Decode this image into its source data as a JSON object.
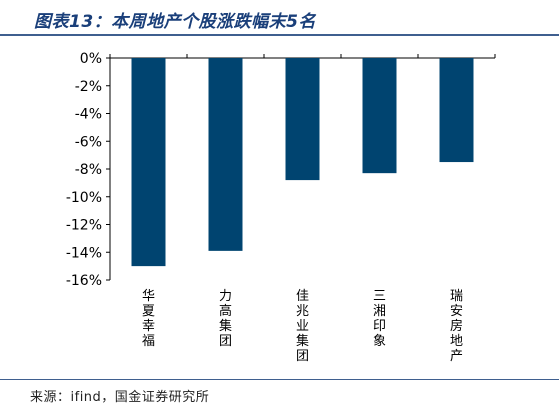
{
  "header": {
    "title": "图表13：本周地产个股涨跌幅末5名"
  },
  "footer": {
    "source": "来源：ifind，国金证券研究所"
  },
  "colors": {
    "bar": "#004470",
    "title": "#1a3f7a",
    "rule": "#3f5f8f",
    "axis": "#000000",
    "text": "#000000"
  },
  "chart_data": {
    "type": "bar",
    "title": "",
    "xlabel": "",
    "ylabel": "",
    "categories": [
      "华夏幸福",
      "力高集团",
      "佳兆业集团",
      "三湘印象",
      "瑞安房地产"
    ],
    "values": [
      -15.0,
      -13.9,
      -8.8,
      -8.3,
      -7.5
    ],
    "ylim": [
      -16,
      0
    ],
    "yticks": [
      0,
      -2,
      -4,
      -6,
      -8,
      -10,
      -12,
      -14,
      -16
    ],
    "ytick_labels": [
      "0%",
      "-2%",
      "-4%",
      "-6%",
      "-8%",
      "-10%",
      "-12%",
      "-14%",
      "-16%"
    ],
    "grid": false,
    "legend": "none"
  }
}
